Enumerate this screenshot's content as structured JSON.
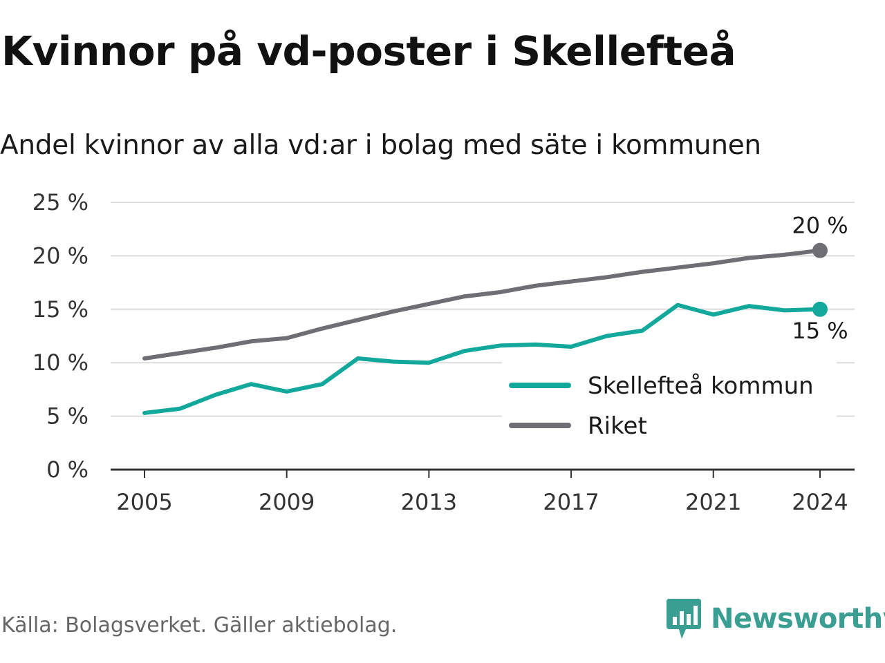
{
  "chart_data": {
    "type": "line",
    "title": "Kvinnor på vd-poster i Skellefteå",
    "subtitle": "Andel kvinnor av alla vd:ar i bolag med säte i kommunen",
    "x": [
      2005,
      2006,
      2007,
      2008,
      2009,
      2010,
      2011,
      2012,
      2013,
      2014,
      2015,
      2016,
      2017,
      2018,
      2019,
      2020,
      2021,
      2022,
      2023,
      2024
    ],
    "x_ticks": [
      "2005",
      "2009",
      "2013",
      "2017",
      "2021",
      "2024"
    ],
    "y_ticks": [
      "0 %",
      "5 %",
      "10 %",
      "15 %",
      "20 %",
      "25 %"
    ],
    "ylim": [
      0,
      25
    ],
    "grid": "horizontal",
    "legend_position": "bottom-right",
    "series": [
      {
        "name": "Skellefteå kommun",
        "color": "#13a89c",
        "values": [
          5.3,
          5.7,
          7.0,
          8.0,
          7.3,
          8.0,
          10.4,
          10.1,
          10.0,
          11.1,
          11.6,
          11.7,
          11.5,
          12.5,
          13.0,
          15.4,
          14.5,
          15.3,
          14.9,
          15.0
        ],
        "end_label": "15 %"
      },
      {
        "name": "Riket",
        "color": "#6f6e75",
        "values": [
          10.4,
          10.9,
          11.4,
          12.0,
          12.3,
          13.2,
          14.0,
          14.8,
          15.5,
          16.2,
          16.6,
          17.2,
          17.6,
          18.0,
          18.5,
          18.9,
          19.3,
          19.8,
          20.1,
          20.5
        ],
        "end_label": "20 %"
      }
    ]
  },
  "footer": {
    "source": "Källa: Bolagsverket. Gäller aktiebolag.",
    "brand": "Newsworthy",
    "brand_color": "#3a9e92",
    "brand_icon": "bar-chart-speech-bubble-icon"
  }
}
